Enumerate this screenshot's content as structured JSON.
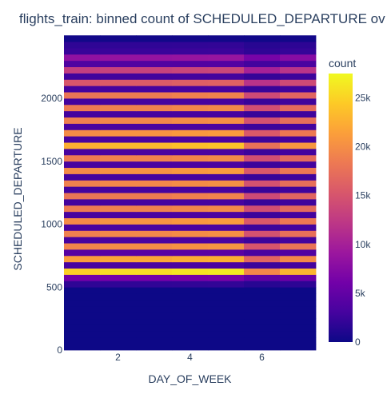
{
  "chart_data": {
    "type": "heatmap",
    "title": "flights_train: binned count of SCHEDULED_DEPARTURE  ov",
    "xlabel": "DAY_OF_WEEK",
    "ylabel": "SCHEDULED_DEPARTURE",
    "x_bins": [
      1,
      2,
      3,
      4,
      5,
      6,
      7
    ],
    "xlim": [
      0.5,
      7.5
    ],
    "x_ticks": [
      2,
      4,
      6
    ],
    "ylim": [
      0,
      2400
    ],
    "y_bin_width": 50,
    "y_ticks": [
      0,
      500,
      1000,
      1500,
      2000
    ],
    "zlim": [
      0,
      27500
    ],
    "colorbar": {
      "title": "count",
      "ticks": [
        0,
        5000,
        10000,
        15000,
        20000,
        25000
      ],
      "tick_labels": [
        "0",
        "5k",
        "10k",
        "15k",
        "20k",
        "25k"
      ]
    },
    "colorscale": [
      "#0d0887",
      "#46039f",
      "#7201a8",
      "#9c179e",
      "#bd3786",
      "#d8576b",
      "#ed7953",
      "#fb9f3a",
      "#fdca26",
      "#f0f921"
    ],
    "column_factors": [
      0.92,
      0.95,
      0.95,
      0.97,
      0.98,
      0.72,
      0.85
    ],
    "row_base_counts": [
      0,
      0,
      0,
      0,
      0,
      0,
      0,
      0,
      0,
      0,
      2000,
      6500,
      27000,
      3500,
      23000,
      4500,
      21000,
      3500,
      20500,
      3500,
      21500,
      3500,
      20000,
      3200,
      19500,
      3200,
      20500,
      3200,
      21500,
      3500,
      20000,
      3500,
      24500,
      3500,
      21500,
      3500,
      20500,
      3200,
      20000,
      3200,
      19500,
      3200,
      16500,
      3000,
      14000,
      4000,
      9000,
      2500,
      2000,
      300
    ]
  }
}
